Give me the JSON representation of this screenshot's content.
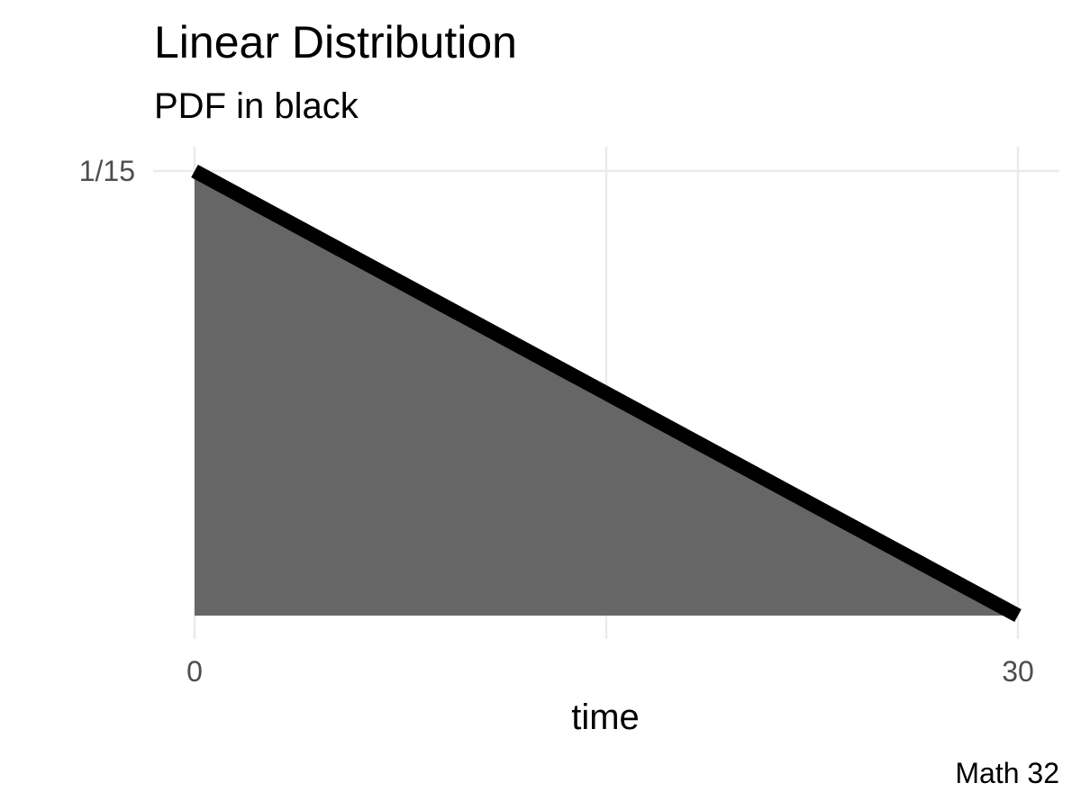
{
  "chart_data": {
    "type": "area",
    "title": "Linear Distribution",
    "subtitle": "PDF in black",
    "xlabel": "time",
    "ylabel": "",
    "caption": "Math 32",
    "x": [
      0,
      30
    ],
    "y": [
      0.0666667,
      0
    ],
    "xlim": [
      0,
      30
    ],
    "ylim": [
      0,
      0.0666667
    ],
    "x_ticks": [
      0,
      30
    ],
    "x_tick_labels": [
      "0",
      "30"
    ],
    "y_ticks": [
      0.0666667
    ],
    "y_tick_labels": [
      "1/15"
    ],
    "grid": true,
    "colors": {
      "fill": "#666666",
      "line": "#000000",
      "grid": "#ebebeb"
    },
    "series": [
      {
        "name": "PDF",
        "x": [
          0,
          30
        ],
        "values": [
          0.0666667,
          0
        ]
      }
    ]
  }
}
